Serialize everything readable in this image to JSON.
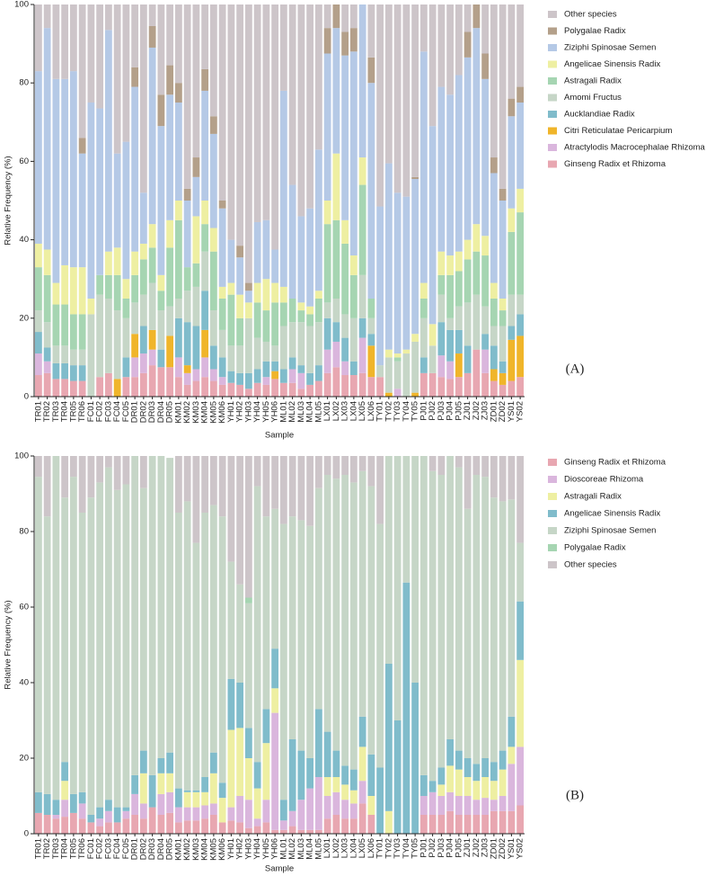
{
  "chart_data": [
    {
      "type": "bar",
      "stacked": true,
      "legend_reversed": true,
      "ylabel": "Relative Frequency (%)",
      "xlabel": "Sample",
      "annotation": "(A)",
      "categories": [
        "TR01",
        "TR02",
        "TR03",
        "TR04",
        "TR05",
        "TR06",
        "FC01",
        "FC02",
        "FC03",
        "FC04",
        "FC05",
        "DR01",
        "DR02",
        "DR03",
        "DR04",
        "DR05",
        "KM01",
        "KM02",
        "KM03",
        "KM04",
        "KM05",
        "KM06",
        "YH01",
        "YH02",
        "YH03",
        "YH04",
        "YH05",
        "YH06",
        "ML01",
        "ML02",
        "ML03",
        "ML04",
        "ML05",
        "LX01",
        "LX02",
        "LX03",
        "LX04",
        "LX05",
        "LX06",
        "TY01",
        "TY02",
        "TY03",
        "TY04",
        "TY05",
        "PJ01",
        "PJ02",
        "PJ03",
        "PJ04",
        "PJ05",
        "ZJ01",
        "ZJ02",
        "ZJ03",
        "ZD01",
        "ZD02",
        "YS01",
        "YS02"
      ],
      "ylim": [
        0,
        100
      ],
      "yticks": [
        0,
        20,
        40,
        60,
        80,
        100
      ],
      "series": [
        {
          "name": "Other species",
          "color": "#cdc5c9",
          "values": [
            17,
            6,
            19,
            19,
            17,
            34,
            25,
            26.5,
            6.5,
            38,
            35,
            16,
            48,
            5.5,
            23,
            15.5,
            20,
            47,
            39,
            16.5,
            28.5,
            50,
            60,
            61.5,
            71,
            55.5,
            55,
            62.5,
            22,
            46,
            54,
            52,
            37,
            6,
            0,
            7,
            6,
            0,
            13.5,
            51.5,
            40.5,
            48,
            49,
            44,
            12,
            31,
            21,
            23,
            18,
            7,
            0,
            12.5,
            39,
            47,
            24,
            21
          ]
        },
        {
          "name": "Polygalae Radix",
          "color": "#b4a08a",
          "values": [
            0,
            0,
            0,
            0,
            0,
            4,
            0,
            0,
            0,
            0,
            0,
            5,
            0,
            5.5,
            8,
            7.5,
            5,
            3,
            5,
            5.5,
            4.5,
            2,
            0,
            3,
            2,
            0,
            0,
            0,
            0,
            0,
            0,
            0,
            0,
            6.5,
            6,
            6,
            6,
            0,
            6.5,
            0,
            0,
            0,
            0,
            0.5,
            0,
            0,
            0,
            0,
            0,
            6.5,
            6,
            6.5,
            4,
            3,
            4.5,
            4
          ]
        },
        {
          "name": "Ziziphi Spinosae Semen",
          "color": "#b5c9e6",
          "values": [
            44,
            56.5,
            52,
            47.5,
            50,
            29,
            50,
            42.5,
            56.5,
            24,
            35,
            42,
            13,
            45,
            38,
            32,
            25,
            17,
            10,
            28,
            24,
            20,
            11,
            9.5,
            3,
            15.5,
            15,
            8.5,
            50,
            29,
            22,
            25,
            36,
            37.5,
            32,
            42,
            52,
            39,
            55,
            40.5,
            47.5,
            41,
            39,
            39.5,
            59,
            50.5,
            42,
            41,
            45,
            46.5,
            50,
            40,
            28,
            25,
            23.5,
            22
          ]
        },
        {
          "name": "Angelicae Sinensis Radix",
          "color": "#eeefa2",
          "values": [
            6,
            6.5,
            5.5,
            10,
            12,
            12,
            4,
            0,
            6,
            7,
            5,
            6,
            4,
            6,
            4,
            7,
            5,
            0,
            12,
            6,
            6,
            3,
            3,
            6,
            4,
            5,
            8,
            5,
            4,
            0,
            2,
            2,
            2,
            6,
            17,
            6,
            5,
            7,
            0,
            0,
            2,
            1,
            1,
            2,
            4,
            5.5,
            6,
            5,
            5,
            5,
            7,
            5,
            4,
            3,
            6,
            6
          ]
        },
        {
          "name": "Astragali Radix",
          "color": "#a6d5b2",
          "values": [
            11,
            12,
            10.5,
            10.5,
            9,
            9,
            0,
            5,
            6,
            9,
            5,
            7,
            9,
            9,
            5,
            15,
            20,
            6,
            6,
            7,
            15,
            8,
            13,
            7,
            0,
            9,
            8,
            11,
            6,
            6,
            3,
            3,
            6,
            20,
            20,
            18,
            11,
            23,
            5,
            0,
            0,
            1,
            0,
            0,
            5,
            0,
            5,
            11,
            9,
            11,
            11,
            13,
            7,
            4,
            16,
            21
          ]
        },
        {
          "name": "Amomi Fructus",
          "color": "#c6d6c7",
          "values": [
            5.5,
            6.5,
            4.5,
            4.5,
            4,
            4,
            21,
            21,
            19,
            17.5,
            10,
            8,
            8,
            12,
            10,
            7.5,
            5,
            8,
            10,
            10,
            9,
            7,
            6.5,
            7,
            14,
            8,
            5,
            4,
            11,
            9,
            11,
            12,
            11,
            4,
            6,
            6,
            11,
            11,
            4,
            3,
            9,
            7,
            11,
            13,
            10,
            7,
            7,
            3,
            6,
            11,
            14,
            7,
            5,
            9,
            8,
            5
          ]
        },
        {
          "name": "Aucklandiae Radix",
          "color": "#80bccb",
          "values": [
            5.5,
            3.5,
            4,
            4,
            4,
            4,
            0,
            0,
            0,
            0,
            5,
            0,
            7,
            0,
            4.5,
            0,
            10,
            11,
            11,
            10,
            6,
            5,
            3,
            3,
            4,
            3.5,
            4,
            2.5,
            3.5,
            3,
            2,
            3,
            4,
            8,
            5,
            6,
            3.5,
            5,
            3,
            0,
            0,
            0,
            0,
            0,
            4,
            0,
            8.5,
            8,
            6,
            7,
            0,
            4,
            6,
            3,
            3.5,
            5.5
          ]
        },
        {
          "name": "Citri Reticulatae Pericarpium",
          "color": "#f0b52a",
          "values": [
            0,
            0,
            0,
            0,
            0,
            0,
            0,
            0,
            0,
            4.5,
            0,
            6,
            0,
            5,
            0,
            8,
            0,
            2,
            0,
            7,
            0,
            0,
            0,
            0,
            0,
            0,
            0,
            2,
            0,
            0,
            0,
            0,
            0,
            0,
            0,
            0,
            0,
            0,
            8,
            0,
            1,
            0,
            0,
            1,
            0,
            0,
            0,
            0,
            6,
            0,
            0,
            0,
            3,
            3,
            10.5,
            10.5
          ]
        },
        {
          "name": "Atractylodis Macrocephalae Rhizoma",
          "color": "#dab6dd",
          "values": [
            5.5,
            3,
            0,
            0,
            0,
            0,
            0,
            0,
            0,
            0,
            0,
            5,
            5,
            4,
            0,
            0,
            5,
            3,
            3,
            5,
            3,
            2,
            0,
            0,
            0,
            0,
            2,
            0,
            0,
            3.5,
            4,
            0,
            0,
            6,
            6.5,
            3.5,
            0,
            9,
            0,
            0,
            0,
            2,
            0,
            0,
            0,
            0,
            5.5,
            4.5,
            0,
            0,
            0,
            6,
            0,
            0,
            0,
            0
          ]
        },
        {
          "name": "Ginseng Radix et Rhizoma",
          "color": "#e8a7b1",
          "values": [
            5.5,
            6,
            4.5,
            4.5,
            4,
            4,
            0,
            5,
            6,
            0,
            5,
            5,
            6,
            8,
            7.5,
            7.5,
            5,
            3,
            4,
            5,
            4,
            3,
            3.5,
            3,
            2,
            3.5,
            3,
            4.5,
            3.5,
            3.5,
            2,
            3,
            4,
            6,
            7.5,
            5.5,
            5.5,
            6,
            5,
            5,
            0,
            0,
            0,
            0,
            6,
            6,
            5,
            4.5,
            5,
            6,
            12,
            6,
            4,
            3,
            4,
            5
          ]
        }
      ]
    },
    {
      "type": "bar",
      "stacked": true,
      "legend_reversed": false,
      "ylabel": "Relative Frequency (%)",
      "xlabel": "Sample",
      "annotation": "(B)",
      "categories": [
        "TR01",
        "TR02",
        "TR03",
        "TR04",
        "TR05",
        "TR06",
        "FC01",
        "FC02",
        "FC03",
        "FC04",
        "FC05",
        "DR01",
        "DR02",
        "DR03",
        "DR04",
        "DR05",
        "KM01",
        "KM02",
        "KM03",
        "KM04",
        "KM05",
        "KM06",
        "YH01",
        "YH02",
        "YH03",
        "YH04",
        "YH05",
        "YH06",
        "ML01",
        "ML02",
        "ML03",
        "ML04",
        "ML05",
        "LX01",
        "LX02",
        "LX03",
        "LX04",
        "LX05",
        "LX06",
        "TY01",
        "TY02",
        "TY03",
        "TY04",
        "TY05",
        "PJ01",
        "PJ02",
        "PJ03",
        "PJ04",
        "PJ05",
        "ZJ01",
        "ZJ02",
        "ZJ03",
        "ZD01",
        "ZD02",
        "YS01",
        "YS02"
      ],
      "ylim": [
        0,
        100
      ],
      "yticks": [
        0,
        20,
        40,
        60,
        80,
        100
      ],
      "series": [
        {
          "name": "Ginseng Radix et Rhizoma",
          "color": "#e8a7b1",
          "values": [
            5.5,
            5,
            4,
            4.5,
            5.5,
            4,
            3,
            2,
            3,
            3,
            4,
            5,
            4,
            7,
            5,
            5.5,
            3,
            3.5,
            3.5,
            4,
            5,
            3,
            3.5,
            3,
            1.5,
            2,
            3,
            1,
            1,
            2,
            1,
            1,
            1,
            4,
            5,
            4,
            4,
            8,
            5,
            0,
            0,
            0,
            0,
            0,
            5,
            5,
            5,
            6,
            5,
            5,
            5,
            5,
            6,
            6,
            6,
            7.5
          ]
        },
        {
          "name": "Dioscoreae Rhizoma",
          "color": "#dab6dd",
          "values": [
            0,
            0,
            1,
            4.5,
            0,
            4,
            0,
            2,
            3,
            0,
            2,
            5.5,
            4,
            0,
            5.5,
            5.5,
            4,
            3.5,
            3.5,
            3.5,
            3,
            0,
            3.5,
            7,
            7.5,
            2,
            6,
            31,
            2.5,
            4,
            8,
            11,
            14,
            6,
            6,
            5,
            4,
            6,
            0,
            0,
            0,
            0,
            0,
            0,
            5,
            6,
            5,
            5,
            5,
            5,
            4,
            4.5,
            3,
            4,
            12.5,
            15.5
          ]
        },
        {
          "name": "Astragali Radix",
          "color": "#eeefa2",
          "values": [
            0,
            0,
            0,
            5,
            0,
            0,
            0,
            0,
            0,
            0,
            0,
            0,
            8,
            0,
            5.5,
            5,
            0,
            4,
            4,
            3.5,
            8,
            6.5,
            20.5,
            18,
            11,
            8,
            15,
            6.5,
            0,
            0,
            0,
            0,
            0,
            5,
            4,
            4,
            3.5,
            9,
            5,
            0,
            6,
            0,
            0,
            0,
            0,
            0,
            3,
            7,
            7,
            5,
            5,
            5.5,
            5,
            7,
            4.5,
            23
          ]
        },
        {
          "name": "Angelicae Sinensis Radix",
          "color": "#80bccb",
          "values": [
            5.5,
            5.5,
            4,
            5,
            5,
            3,
            2,
            3,
            3,
            4,
            1,
            5,
            6,
            8.5,
            4,
            5.5,
            5,
            0.5,
            0.5,
            4,
            5.5,
            4,
            13.5,
            12,
            8,
            7,
            9,
            10.5,
            5.5,
            19,
            13,
            8,
            18,
            12,
            7,
            5,
            5.5,
            8,
            11,
            17.5,
            39,
            30,
            66.5,
            40,
            5.5,
            3,
            4.5,
            7,
            5,
            5,
            4.5,
            5,
            5,
            5,
            8,
            15.5
          ]
        },
        {
          "name": "Ziziphi Spinosae Semen",
          "color": "#c6d6c7",
          "values": [
            83.5,
            73.5,
            91,
            70,
            84,
            74,
            84,
            86,
            88,
            84,
            85.5,
            84.5,
            69.5,
            84.5,
            80,
            78,
            73,
            76.5,
            65.5,
            70,
            65.5,
            70.5,
            31,
            26,
            33,
            73,
            51,
            37,
            73,
            59,
            61,
            61.5,
            58.5,
            68,
            72,
            77,
            76,
            65,
            71,
            64.5,
            55,
            70,
            33.5,
            60,
            84.5,
            82,
            77.5,
            75,
            75,
            66,
            76.5,
            74.5,
            70,
            66,
            57.5,
            15.5
          ]
        },
        {
          "name": "Polygalae Radix",
          "color": "#a6d5b2",
          "values": [
            0,
            0,
            0,
            0,
            0,
            0,
            0,
            0,
            0,
            0,
            0,
            0,
            0,
            0,
            0,
            0,
            0,
            0,
            0,
            0,
            0,
            0,
            0,
            0,
            1.5,
            0,
            0,
            0,
            0,
            0,
            0,
            0,
            0,
            0,
            0,
            0,
            0,
            0,
            0,
            0,
            0,
            0,
            0,
            0,
            0,
            0,
            0,
            0,
            0,
            0,
            0,
            0,
            0,
            0,
            0,
            0
          ]
        },
        {
          "name": "Other species",
          "color": "#cdc5c9",
          "values": [
            5.5,
            16,
            0,
            11,
            5.5,
            15,
            11,
            7,
            3,
            9,
            7.5,
            0,
            8.5,
            0,
            0,
            0,
            15,
            12,
            23,
            15,
            13,
            16,
            28,
            34,
            37.5,
            8,
            16,
            14,
            18,
            16,
            17,
            18.5,
            8.5,
            5,
            6,
            5,
            7,
            4,
            8,
            18,
            0,
            0,
            0,
            0,
            0,
            4,
            5,
            0,
            3,
            14,
            5,
            5.5,
            11,
            12,
            11.5,
            23
          ]
        }
      ]
    }
  ]
}
